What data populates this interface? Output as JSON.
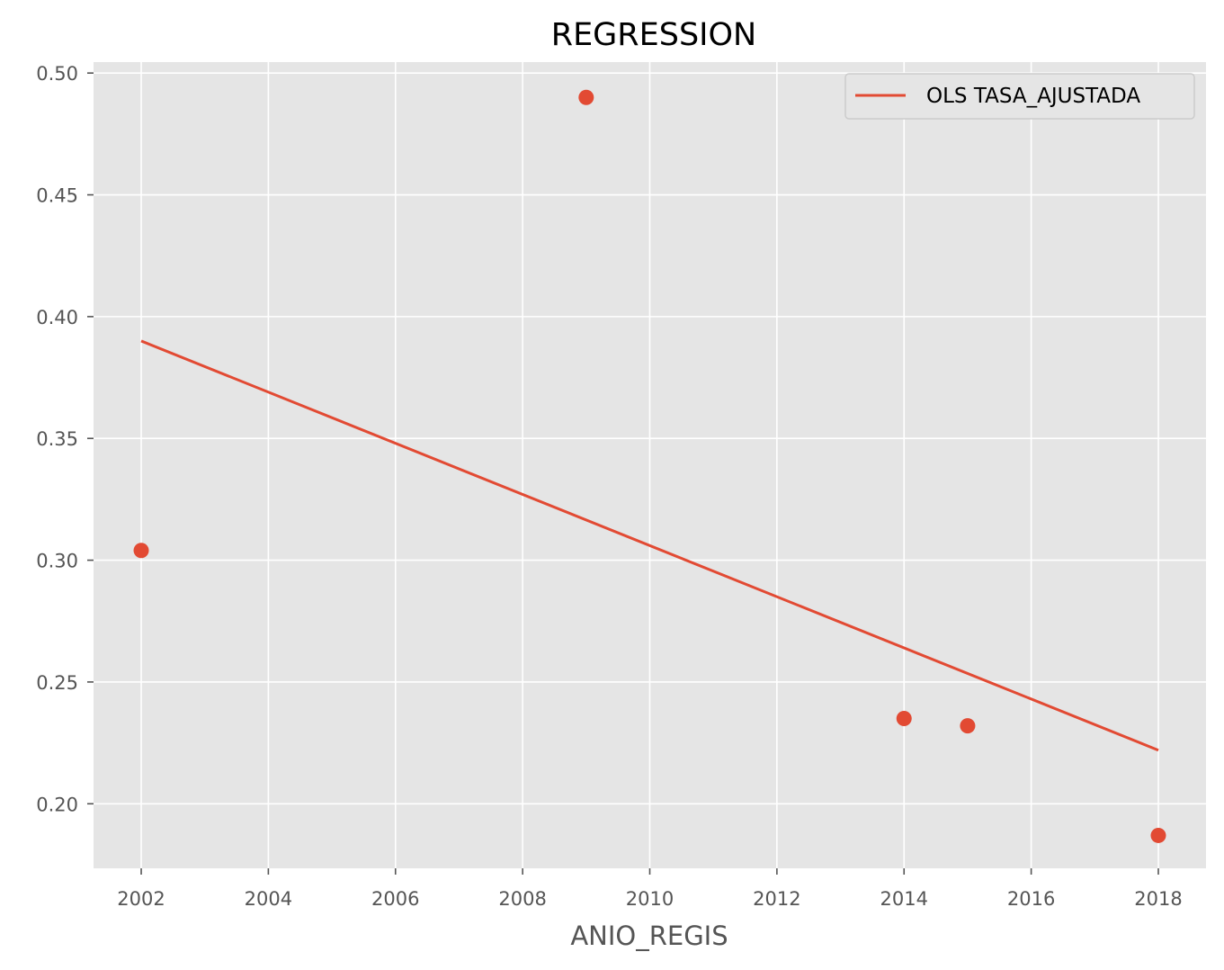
{
  "chart_data": {
    "type": "scatter",
    "title": "REGRESSION",
    "xlabel": "ANIO_REGIS",
    "ylabel": "",
    "xlim": [
      2001.25,
      2018.75
    ],
    "ylim": [
      0.1735,
      0.5045
    ],
    "xticks": [
      2002,
      2004,
      2006,
      2008,
      2010,
      2012,
      2014,
      2016,
      2018
    ],
    "xtick_labels": [
      "2002",
      "2004",
      "2006",
      "2008",
      "2010",
      "2012",
      "2014",
      "2016",
      "2018"
    ],
    "yticks": [
      0.2,
      0.25,
      0.3,
      0.35,
      0.4,
      0.45,
      0.5
    ],
    "ytick_labels": [
      "0.20",
      "0.25",
      "0.30",
      "0.35",
      "0.40",
      "0.45",
      "0.50"
    ],
    "grid": true,
    "legend_position": "top-right",
    "series": [
      {
        "kind": "scatter",
        "color": "#E24A33",
        "x": [
          2002,
          2009,
          2014,
          2015,
          2018
        ],
        "y": [
          0.304,
          0.49,
          0.235,
          0.232,
          0.187
        ]
      },
      {
        "kind": "line",
        "name": "OLS TASA_AJUSTADA",
        "color": "#E24A33",
        "x": [
          2002,
          2018
        ],
        "y": [
          0.39,
          0.222
        ]
      }
    ],
    "background_color": "#E5E5E5",
    "grid_color": "#FFFFFF"
  }
}
